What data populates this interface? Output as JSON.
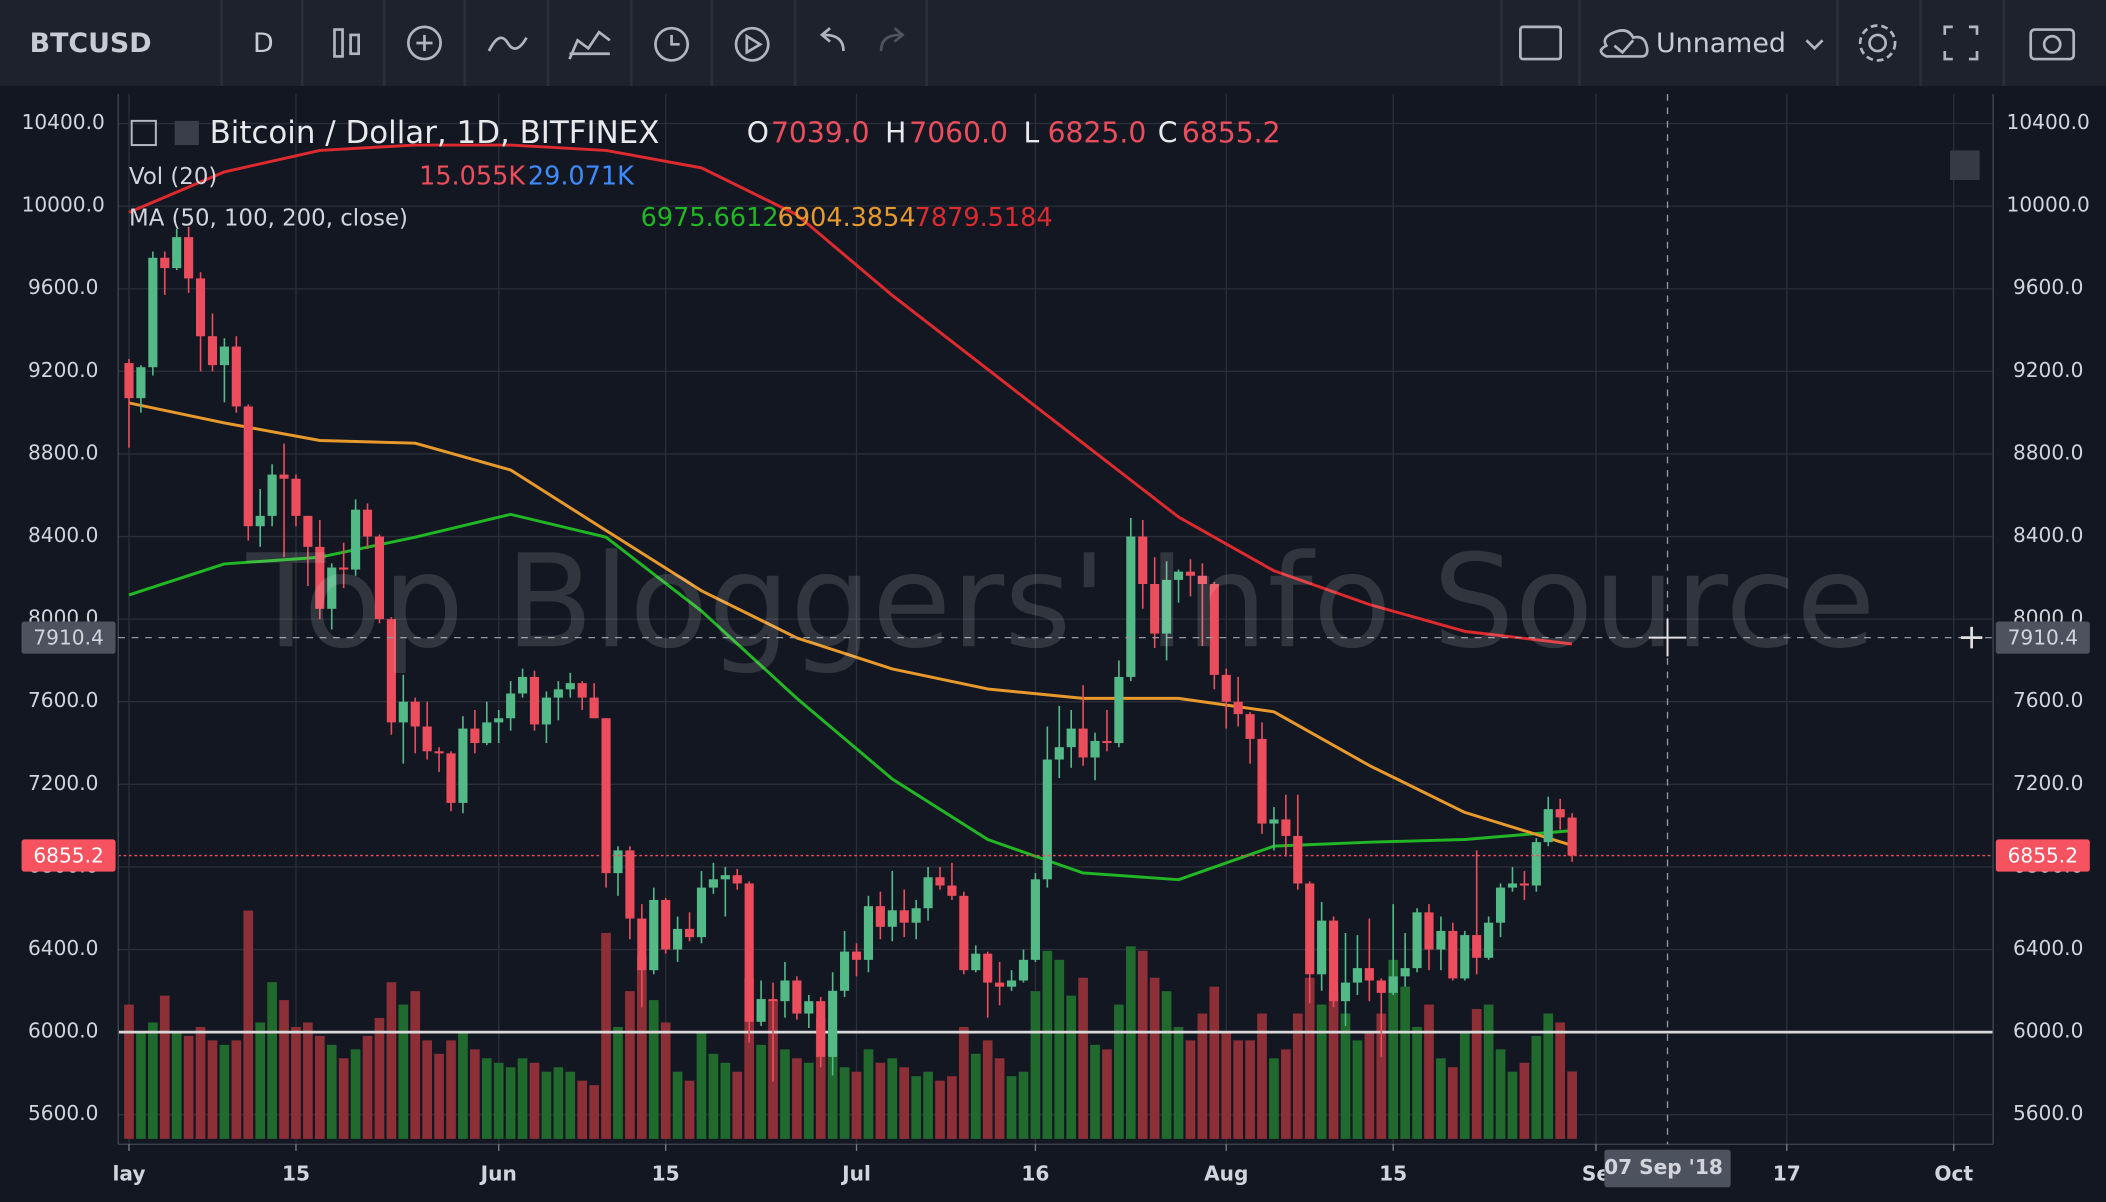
{
  "toolbar": {
    "symbol": "BTCUSD",
    "interval": "D",
    "layout": "Unnamed"
  },
  "watermark": "Top Bloggers' Info Source",
  "chart_data": {
    "type": "candlestick",
    "title": "Bitcoin / Dollar, 1D, BITFINEX",
    "ohlc_legend": [
      {
        "key": "O",
        "label": "7039.0"
      },
      {
        "key": "H",
        "label": "7060.0"
      },
      {
        "key": "L",
        "label": "6825.0"
      },
      {
        "key": "C",
        "label": "6855.2"
      }
    ],
    "up_color": "#53b987",
    "down_color": "#eb4d5c",
    "xlim": [
      -0.9,
      156.3
    ],
    "ylim": [
      5457,
      10543
    ],
    "xticks": [
      {
        "value": 0,
        "label": "lay"
      },
      {
        "value": 14,
        "label": "15"
      },
      {
        "value": 31,
        "label": "Jun"
      },
      {
        "value": 45,
        "label": "15"
      },
      {
        "value": 61,
        "label": "Jul"
      },
      {
        "value": 76,
        "label": "16"
      },
      {
        "value": 92,
        "label": "Aug"
      },
      {
        "value": 106,
        "label": "15"
      },
      {
        "value": 123,
        "label": "Se"
      },
      {
        "value": 139,
        "label": "17"
      },
      {
        "value": 153,
        "label": "Oct"
      }
    ],
    "yticks": [
      {
        "value": 5600,
        "label": "5600.0"
      },
      {
        "value": 6000,
        "label": "6000.0"
      },
      {
        "value": 6400,
        "label": "6400.0"
      },
      {
        "value": 6800,
        "label": "6800.0"
      },
      {
        "value": 7200,
        "label": "7200.0"
      },
      {
        "value": 7600,
        "label": "7600.0"
      },
      {
        "value": 8000,
        "label": "8000.0"
      },
      {
        "value": 8400,
        "label": "8400.0"
      },
      {
        "value": 8800,
        "label": "8800.0"
      },
      {
        "value": 9200,
        "label": "9200.0"
      },
      {
        "value": 9600,
        "label": "9600.0"
      },
      {
        "value": 10000,
        "label": "10000.0"
      },
      {
        "value": 10400,
        "label": "10400.0"
      }
    ],
    "grid": true,
    "x": [
      0,
      1,
      2,
      3,
      4,
      5,
      6,
      7,
      8,
      9,
      10,
      11,
      12,
      13,
      14,
      15,
      16,
      17,
      18,
      19,
      20,
      21,
      22,
      23,
      24,
      25,
      26,
      27,
      28,
      29,
      30,
      31,
      32,
      33,
      34,
      35,
      36,
      37,
      38,
      39,
      40,
      41,
      42,
      43,
      44,
      45,
      46,
      47,
      48,
      49,
      50,
      51,
      52,
      53,
      54,
      55,
      56,
      57,
      58,
      59,
      60,
      61,
      62,
      63,
      64,
      65,
      66,
      67,
      68,
      69,
      70,
      71,
      72,
      73,
      74,
      75,
      76,
      77,
      78,
      79,
      80,
      81,
      82,
      83,
      84,
      85,
      86,
      87,
      88,
      89,
      90,
      91,
      92,
      93,
      94,
      95,
      96,
      97,
      98,
      99,
      100,
      101,
      102,
      103,
      104,
      105,
      106,
      107,
      108,
      109,
      110,
      111,
      112,
      113,
      114,
      115,
      116,
      117,
      118,
      119,
      120,
      121
    ],
    "candles": [
      [
        9240,
        9260,
        8830,
        9070
      ],
      [
        9070,
        9230,
        9000,
        9220
      ],
      [
        9220,
        9780,
        9180,
        9750
      ],
      [
        9750,
        9780,
        9570,
        9700
      ],
      [
        9700,
        9890,
        9690,
        9850
      ],
      [
        9850,
        9900,
        9580,
        9650
      ],
      [
        9650,
        9680,
        9200,
        9370
      ],
      [
        9370,
        9480,
        9200,
        9230
      ],
      [
        9230,
        9360,
        9050,
        9320
      ],
      [
        9320,
        9370,
        9000,
        9030
      ],
      [
        9030,
        9040,
        8380,
        8450
      ],
      [
        8450,
        8630,
        8350,
        8500
      ],
      [
        8500,
        8750,
        8450,
        8700
      ],
      [
        8700,
        8850,
        8300,
        8680
      ],
      [
        8680,
        8700,
        8450,
        8500
      ],
      [
        8500,
        8500,
        8160,
        8350
      ],
      [
        8350,
        8480,
        8000,
        8050
      ],
      [
        8050,
        8270,
        7950,
        8250
      ],
      [
        8250,
        8370,
        8150,
        8240
      ],
      [
        8240,
        8580,
        8210,
        8530
      ],
      [
        8530,
        8560,
        8340,
        8400
      ],
      [
        8400,
        8410,
        7980,
        8000
      ],
      [
        8000,
        8010,
        7440,
        7500
      ],
      [
        7500,
        7730,
        7300,
        7600
      ],
      [
        7600,
        7620,
        7350,
        7480
      ],
      [
        7480,
        7600,
        7320,
        7360
      ],
      [
        7360,
        7380,
        7260,
        7350
      ],
      [
        7350,
        7360,
        7070,
        7110
      ],
      [
        7110,
        7530,
        7060,
        7470
      ],
      [
        7470,
        7560,
        7350,
        7400
      ],
      [
        7400,
        7600,
        7390,
        7500
      ],
      [
        7500,
        7560,
        7400,
        7520
      ],
      [
        7520,
        7700,
        7460,
        7640
      ],
      [
        7640,
        7760,
        7620,
        7720
      ],
      [
        7720,
        7750,
        7460,
        7490
      ],
      [
        7490,
        7650,
        7400,
        7620
      ],
      [
        7620,
        7700,
        7510,
        7660
      ],
      [
        7660,
        7740,
        7620,
        7690
      ],
      [
        7690,
        7700,
        7560,
        7620
      ],
      [
        7620,
        7690,
        7520,
        7520
      ],
      [
        7520,
        7520,
        6700,
        6770
      ],
      [
        6770,
        6900,
        6660,
        6880
      ],
      [
        6880,
        6900,
        6450,
        6550
      ],
      [
        6550,
        6620,
        6120,
        6300
      ],
      [
        6300,
        6700,
        6280,
        6640
      ],
      [
        6640,
        6650,
        6380,
        6400
      ],
      [
        6400,
        6560,
        6340,
        6500
      ],
      [
        6500,
        6580,
        6440,
        6460
      ],
      [
        6460,
        6780,
        6430,
        6700
      ],
      [
        6700,
        6820,
        6670,
        6740
      ],
      [
        6740,
        6800,
        6560,
        6760
      ],
      [
        6760,
        6790,
        6690,
        6720
      ],
      [
        6720,
        6730,
        5950,
        6050
      ],
      [
        6050,
        6250,
        6030,
        6160
      ],
      [
        6160,
        6240,
        5760,
        6150
      ],
      [
        6150,
        6340,
        6070,
        6250
      ],
      [
        6250,
        6270,
        6060,
        6090
      ],
      [
        6090,
        6180,
        6020,
        6150
      ],
      [
        6150,
        6170,
        5830,
        5880
      ],
      [
        5880,
        6290,
        5790,
        6200
      ],
      [
        6200,
        6490,
        6170,
        6390
      ],
      [
        6390,
        6430,
        6270,
        6350
      ],
      [
        6350,
        6660,
        6290,
        6610
      ],
      [
        6610,
        6680,
        6450,
        6510
      ],
      [
        6510,
        6780,
        6440,
        6590
      ],
      [
        6590,
        6690,
        6460,
        6530
      ],
      [
        6530,
        6640,
        6450,
        6600
      ],
      [
        6600,
        6800,
        6540,
        6750
      ],
      [
        6750,
        6800,
        6690,
        6710
      ],
      [
        6710,
        6820,
        6640,
        6660
      ],
      [
        6660,
        6680,
        6280,
        6300
      ],
      [
        6300,
        6420,
        6290,
        6380
      ],
      [
        6380,
        6390,
        6070,
        6240
      ],
      [
        6240,
        6340,
        6130,
        6220
      ],
      [
        6220,
        6300,
        6200,
        6250
      ],
      [
        6250,
        6400,
        6240,
        6350
      ],
      [
        6350,
        6770,
        6340,
        6740
      ],
      [
        6740,
        7480,
        6700,
        7320
      ],
      [
        7320,
        7580,
        7230,
        7380
      ],
      [
        7380,
        7560,
        7280,
        7470
      ],
      [
        7470,
        7680,
        7290,
        7330
      ],
      [
        7330,
        7450,
        7220,
        7410
      ],
      [
        7410,
        7560,
        7360,
        7400
      ],
      [
        7400,
        7800,
        7380,
        7720
      ],
      [
        7720,
        8490,
        7700,
        8400
      ],
      [
        8400,
        8480,
        8050,
        8170
      ],
      [
        8170,
        8300,
        7860,
        7930
      ],
      [
        7930,
        8280,
        7800,
        8190
      ],
      [
        8190,
        8240,
        8080,
        8230
      ],
      [
        8230,
        8290,
        8110,
        8210
      ],
      [
        8210,
        8270,
        7870,
        8170
      ],
      [
        8170,
        8180,
        7660,
        7730
      ],
      [
        7730,
        7760,
        7470,
        7600
      ],
      [
        7600,
        7720,
        7480,
        7540
      ],
      [
        7540,
        7550,
        7300,
        7420
      ],
      [
        7420,
        7500,
        6960,
        7010
      ],
      [
        7010,
        7090,
        6880,
        7030
      ],
      [
        7030,
        7150,
        6850,
        6950
      ],
      [
        6950,
        7150,
        6690,
        6720
      ],
      [
        6720,
        6730,
        6140,
        6280
      ],
      [
        6280,
        6630,
        6200,
        6540
      ],
      [
        6540,
        6560,
        6120,
        6150
      ],
      [
        6150,
        6480,
        6030,
        6240
      ],
      [
        6240,
        6470,
        6180,
        6310
      ],
      [
        6310,
        6550,
        6150,
        6250
      ],
      [
        6250,
        6260,
        5880,
        6190
      ],
      [
        6190,
        6620,
        6180,
        6270
      ],
      [
        6270,
        6480,
        6220,
        6310
      ],
      [
        6310,
        6600,
        6290,
        6580
      ],
      [
        6580,
        6620,
        6300,
        6400
      ],
      [
        6400,
        6560,
        6300,
        6490
      ],
      [
        6490,
        6530,
        6250,
        6260
      ],
      [
        6260,
        6490,
        6250,
        6470
      ],
      [
        6470,
        6880,
        6280,
        6360
      ],
      [
        6360,
        6560,
        6350,
        6530
      ],
      [
        6530,
        6720,
        6460,
        6700
      ],
      [
        6700,
        6800,
        6680,
        6720
      ],
      [
        6720,
        6780,
        6640,
        6710
      ],
      [
        6710,
        6940,
        6680,
        6920
      ],
      [
        6920,
        7140,
        6900,
        7080
      ],
      [
        7080,
        7130,
        6980,
        7040
      ],
      [
        7039,
        7060,
        6825,
        6855.2
      ]
    ],
    "volume": {
      "name": "Vol (20)",
      "legend_labels": [
        "15.055K",
        "29.071K"
      ],
      "up_color": "#1f6a2c",
      "down_color": "#8c2f37",
      "values": [
        30000,
        24000,
        26000,
        32000,
        24000,
        23000,
        25000,
        22000,
        21000,
        22000,
        51000,
        26000,
        35000,
        31000,
        25000,
        26000,
        23000,
        21000,
        18000,
        20000,
        23000,
        27000,
        35000,
        30000,
        33000,
        22000,
        19000,
        22000,
        24000,
        20000,
        18000,
        17000,
        16000,
        18000,
        17000,
        15000,
        16000,
        15000,
        13000,
        12000,
        46000,
        25000,
        33000,
        41000,
        31000,
        26000,
        15000,
        13000,
        24000,
        19000,
        17000,
        15000,
        36000,
        21000,
        31000,
        20000,
        18000,
        17000,
        27000,
        24000,
        16000,
        15000,
        20000,
        17000,
        18000,
        16000,
        14000,
        15000,
        13000,
        14000,
        25000,
        19000,
        22000,
        18000,
        14000,
        15000,
        33000,
        42000,
        40000,
        32000,
        36000,
        21000,
        20000,
        30000,
        43000,
        42000,
        36000,
        33000,
        25000,
        22000,
        28000,
        34000,
        24000,
        22000,
        22000,
        28000,
        18000,
        20000,
        28000,
        36000,
        30000,
        33000,
        28000,
        22000,
        24000,
        28000,
        40000,
        34000,
        25000,
        30000,
        18000,
        16000,
        24000,
        29000,
        30000,
        20000,
        15000,
        17000,
        23000,
        28000,
        26000,
        15055
      ]
    },
    "ma_name": "MA (50, 100, 200, close)",
    "series": [
      {
        "color": "#21b624",
        "x": [
          0,
          8,
          16,
          24,
          32,
          40,
          48,
          56,
          64,
          72,
          80,
          88,
          96,
          104,
          112,
          121
        ],
        "values": [
          8117,
          8267,
          8300,
          8397,
          8507,
          8397,
          8039,
          7616,
          7226,
          6933,
          6771,
          6738,
          6901,
          6920,
          6933,
          6975.6612
        ]
      },
      {
        "color": "#e8992c",
        "x": [
          0,
          8,
          16,
          24,
          32,
          40,
          48,
          56,
          64,
          72,
          80,
          88,
          96,
          104,
          112,
          121
        ],
        "values": [
          9047,
          8950,
          8865,
          8852,
          8722,
          8429,
          8137,
          7909,
          7759,
          7662,
          7616,
          7616,
          7551,
          7291,
          7064,
          6904.3854
        ]
      },
      {
        "color": "#dd2a2e",
        "x": [
          0,
          8,
          16,
          24,
          32,
          40,
          48,
          56,
          64,
          72,
          80,
          88,
          96,
          104,
          112,
          121
        ],
        "values": [
          9970,
          10166,
          10270,
          10296,
          10296,
          10270,
          10185,
          9958,
          9568,
          9210,
          8852,
          8494,
          8234,
          8071,
          7941,
          7879.5184
        ]
      }
    ],
    "hline": 6000,
    "last_price": 6855.2,
    "crosshair": {
      "x": 129,
      "date_label": "07 Sep '18",
      "price": 7910.4
    }
  }
}
